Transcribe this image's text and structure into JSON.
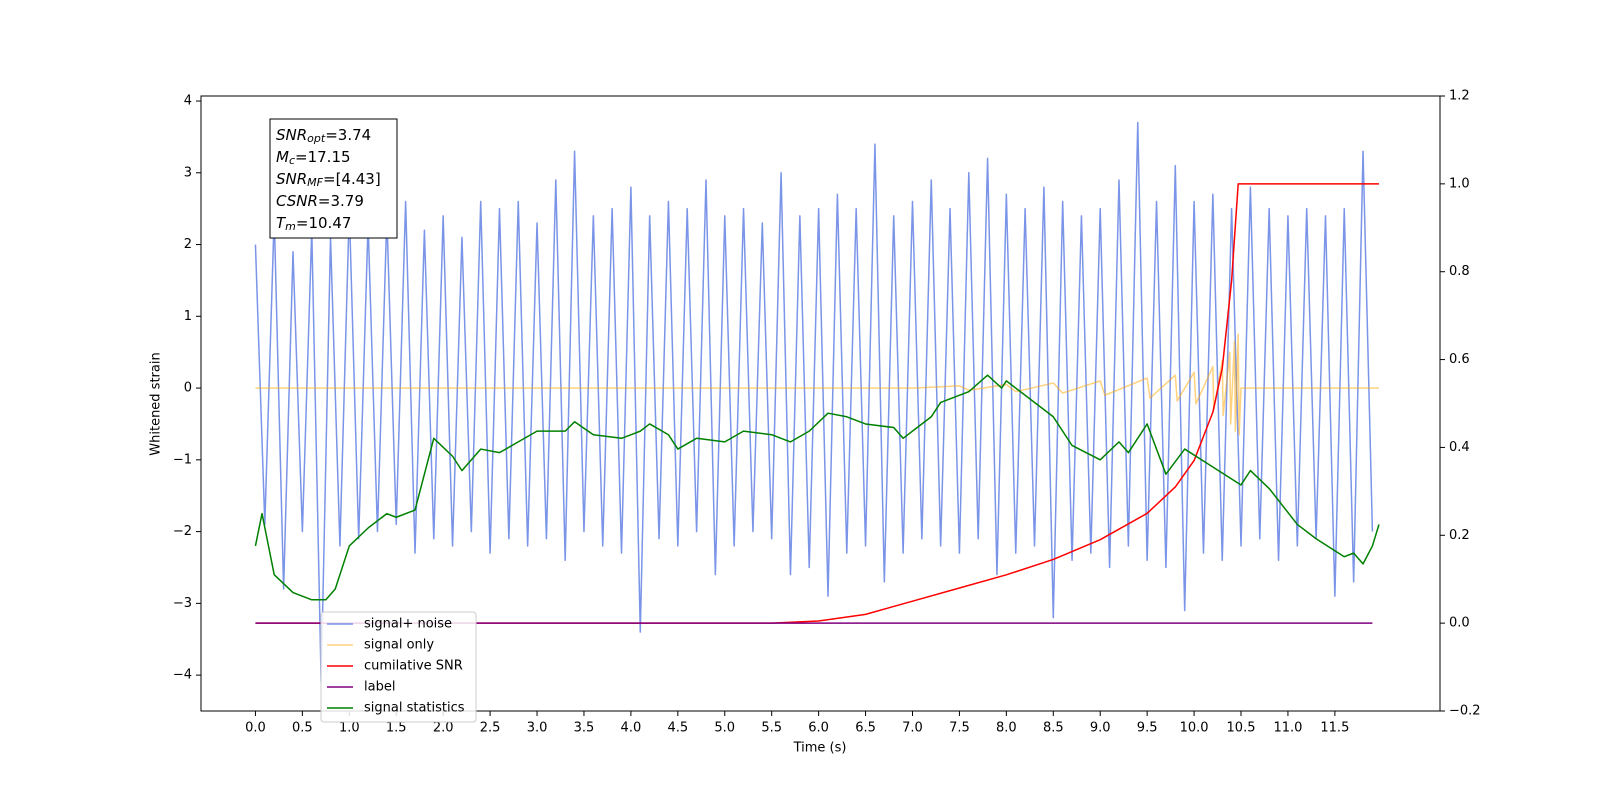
{
  "chart_data": {
    "type": "line",
    "xlabel": "Time (s)",
    "ylabel": "Whitened strain",
    "xlim": [
      -0.58,
      12.62
    ],
    "ylim": [
      -4.5,
      4.07
    ],
    "y2lim": [
      -0.2,
      1.2
    ],
    "xticks": [
      {
        "value": 0,
        "label": "0.0"
      },
      {
        "value": 0.5,
        "label": "0.5"
      },
      {
        "value": 1,
        "label": "1.0"
      },
      {
        "value": 1.5,
        "label": "1.5"
      },
      {
        "value": 2,
        "label": "2.0"
      },
      {
        "value": 2.5,
        "label": "2.5"
      },
      {
        "value": 3,
        "label": "3.0"
      },
      {
        "value": 3.5,
        "label": "3.5"
      },
      {
        "value": 4,
        "label": "4.0"
      },
      {
        "value": 4.5,
        "label": "4.5"
      },
      {
        "value": 5,
        "label": "5.0"
      },
      {
        "value": 5.5,
        "label": "5.5"
      },
      {
        "value": 6,
        "label": "6.0"
      },
      {
        "value": 6.5,
        "label": "6.5"
      },
      {
        "value": 7,
        "label": "7.0"
      },
      {
        "value": 7.5,
        "label": "7.5"
      },
      {
        "value": 8,
        "label": "8.0"
      },
      {
        "value": 8.5,
        "label": "8.5"
      },
      {
        "value": 9,
        "label": "9.0"
      },
      {
        "value": 9.5,
        "label": "9.5"
      },
      {
        "value": 10,
        "label": "10.0"
      },
      {
        "value": 10.5,
        "label": "10.5"
      },
      {
        "value": 11,
        "label": "11.0"
      },
      {
        "value": 11.5,
        "label": "11.5"
      }
    ],
    "yticks": [
      {
        "value": -4,
        "label": "−4"
      },
      {
        "value": -3,
        "label": "−3"
      },
      {
        "value": -2,
        "label": "−2"
      },
      {
        "value": -1,
        "label": "−1"
      },
      0,
      1,
      2,
      3,
      4
    ],
    "y2ticks": [
      {
        "value": -0.2,
        "label": "−0.2"
      },
      {
        "value": 0,
        "label": "0.0"
      },
      {
        "value": 0.2,
        "label": "0.2"
      },
      {
        "value": 0.4,
        "label": "0.4"
      },
      {
        "value": 0.6,
        "label": "0.6"
      },
      {
        "value": 0.8,
        "label": "0.8"
      },
      {
        "value": 1,
        "label": "1.0"
      },
      {
        "value": 1.2,
        "label": "1.2"
      }
    ],
    "annotation": [
      {
        "main": "SNR",
        "sub": "opt",
        "rest": "=3.74"
      },
      {
        "main": "M",
        "sub": "c",
        "rest": "=17.15"
      },
      {
        "main": "SNR",
        "sub": "MF",
        "rest": "=[4.43]"
      },
      {
        "main": "CSNR",
        "sub": "",
        "rest": "=3.79"
      },
      {
        "main": "T",
        "sub": "m",
        "rest": "=10.47"
      }
    ],
    "series": [
      {
        "name": "signal+ noise",
        "color": "#6b88e6",
        "axis": "y",
        "x": [
          0,
          0.1,
          0.2,
          0.3,
          0.4,
          0.5,
          0.6,
          0.7,
          0.8,
          0.9,
          1,
          1.1,
          1.2,
          1.3,
          1.4,
          1.5,
          1.6,
          1.7,
          1.8,
          1.9,
          2,
          2.1,
          2.2,
          2.3,
          2.4,
          2.5,
          2.6,
          2.7,
          2.8,
          2.9,
          3,
          3.1,
          3.2,
          3.3,
          3.4,
          3.5,
          3.6,
          3.7,
          3.8,
          3.9,
          4,
          4.1,
          4.2,
          4.3,
          4.4,
          4.5,
          4.6,
          4.7,
          4.8,
          4.9,
          5,
          5.1,
          5.2,
          5.3,
          5.4,
          5.5,
          5.6,
          5.7,
          5.8,
          5.9,
          6,
          6.1,
          6.2,
          6.3,
          6.4,
          6.5,
          6.6,
          6.7,
          6.8,
          6.9,
          7,
          7.1,
          7.2,
          7.3,
          7.4,
          7.5,
          7.6,
          7.7,
          7.8,
          7.9,
          8,
          8.1,
          8.2,
          8.3,
          8.4,
          8.5,
          8.6,
          8.7,
          8.8,
          8.9,
          9,
          9.1,
          9.2,
          9.3,
          9.4,
          9.5,
          9.6,
          9.7,
          9.8,
          9.9,
          10,
          10.1,
          10.2,
          10.3,
          10.4,
          10.5,
          10.6,
          10.7,
          10.8,
          10.9,
          11,
          11.1,
          11.2,
          11.3,
          11.4,
          11.5,
          11.6,
          11.7,
          11.8,
          11.9
        ],
        "values": [
          2.0,
          -1.9,
          2.4,
          -2.8,
          1.9,
          -2.0,
          2.2,
          -4.1,
          2.1,
          -2.2,
          2.5,
          -2.1,
          2.3,
          -2.0,
          2.4,
          -1.9,
          2.6,
          -2.3,
          2.2,
          -2.1,
          2.4,
          -2.2,
          2.1,
          -2.0,
          2.6,
          -2.3,
          2.5,
          -2.1,
          2.6,
          -2.2,
          2.3,
          -2.1,
          2.9,
          -2.4,
          3.3,
          -2.0,
          2.4,
          -2.2,
          2.5,
          -2.3,
          2.8,
          -3.4,
          2.4,
          -2.1,
          2.6,
          -2.2,
          2.5,
          -2.0,
          2.9,
          -2.6,
          2.4,
          -2.2,
          2.5,
          -2.0,
          2.3,
          -2.1,
          3.0,
          -2.6,
          2.4,
          -2.5,
          2.5,
          -2.9,
          2.7,
          -2.3,
          2.5,
          -2.2,
          3.4,
          -2.7,
          2.4,
          -2.3,
          2.6,
          -2.1,
          2.9,
          -2.2,
          2.5,
          -2.3,
          3.0,
          -2.1,
          3.2,
          -2.6,
          2.7,
          -2.3,
          2.5,
          -2.2,
          2.8,
          -3.2,
          2.6,
          -2.4,
          2.4,
          -2.3,
          2.5,
          -2.5,
          2.9,
          -2.2,
          3.7,
          -2.4,
          2.6,
          -2.5,
          3.1,
          -3.1,
          2.6,
          -2.3,
          2.7,
          -2.4,
          2.5,
          -2.2,
          2.8,
          -2.1,
          2.5,
          -2.4,
          2.4,
          -2.2,
          2.5,
          -2.1,
          2.4,
          -2.9,
          2.5,
          -2.7,
          3.3,
          -2.0
        ]
      },
      {
        "name": "signal only",
        "color": "orange",
        "axis": "y",
        "x": [
          0,
          7.0,
          7.5,
          7.6,
          8.0,
          8.1,
          8.5,
          8.6,
          9.0,
          9.05,
          9.5,
          9.53,
          9.8,
          9.82,
          10.0,
          10.02,
          10.2,
          10.21,
          10.3,
          10.31,
          10.38,
          10.39,
          10.43,
          10.44,
          10.47,
          10.48,
          10.5,
          11.97
        ],
        "values": [
          0,
          0,
          0.03,
          -0.03,
          0.05,
          -0.05,
          0.07,
          -0.07,
          0.1,
          -0.1,
          0.14,
          -0.14,
          0.18,
          -0.18,
          0.22,
          -0.22,
          0.3,
          -0.3,
          0.38,
          -0.38,
          0.5,
          -0.5,
          0.65,
          -0.6,
          0.75,
          -0.65,
          0,
          0
        ]
      },
      {
        "name": "cumilative SNR",
        "color": "red",
        "axis": "y2",
        "x": [
          0,
          5.5,
          6.0,
          6.5,
          7.0,
          7.5,
          8.0,
          8.5,
          9.0,
          9.5,
          9.8,
          10.0,
          10.2,
          10.3,
          10.4,
          10.47,
          11.97
        ],
        "values": [
          0,
          0,
          0.005,
          0.02,
          0.05,
          0.08,
          0.11,
          0.145,
          0.19,
          0.25,
          0.31,
          0.37,
          0.48,
          0.58,
          0.78,
          1.0,
          1.0
        ]
      },
      {
        "name": "label",
        "color": "purple",
        "axis": "y2",
        "x": [
          0,
          11.9
        ],
        "values": [
          0,
          0
        ]
      },
      {
        "name": "signal statistics",
        "color": "green",
        "axis": "y",
        "x": [
          0,
          0.07,
          0.2,
          0.4,
          0.6,
          0.75,
          0.85,
          1.0,
          1.2,
          1.4,
          1.5,
          1.7,
          1.8,
          1.9,
          2.1,
          2.2,
          2.4,
          2.6,
          2.8,
          3.0,
          3.3,
          3.4,
          3.6,
          3.9,
          4.1,
          4.2,
          4.4,
          4.5,
          4.7,
          5.0,
          5.2,
          5.5,
          5.7,
          5.9,
          6.1,
          6.3,
          6.5,
          6.8,
          6.9,
          7.0,
          7.2,
          7.3,
          7.6,
          7.8,
          7.95,
          8.0,
          8.5,
          8.7,
          9.0,
          9.2,
          9.3,
          9.5,
          9.7,
          9.9,
          10.2,
          10.5,
          10.6,
          10.8,
          11.1,
          11.3,
          11.6,
          11.7,
          11.8,
          11.9,
          11.97
        ],
        "values": [
          -2.2,
          -1.75,
          -2.6,
          -2.85,
          -2.95,
          -2.95,
          -2.8,
          -2.2,
          -1.95,
          -1.75,
          -1.8,
          -1.7,
          -1.2,
          -0.7,
          -0.95,
          -1.15,
          -0.85,
          -0.9,
          -0.75,
          -0.6,
          -0.6,
          -0.47,
          -0.65,
          -0.7,
          -0.6,
          -0.5,
          -0.65,
          -0.85,
          -0.7,
          -0.75,
          -0.6,
          -0.65,
          -0.75,
          -0.6,
          -0.35,
          -0.4,
          -0.5,
          -0.55,
          -0.7,
          -0.6,
          -0.4,
          -0.2,
          -0.05,
          0.18,
          0,
          0.1,
          -0.4,
          -0.8,
          -1.0,
          -0.75,
          -0.9,
          -0.5,
          -1.2,
          -0.85,
          -1.1,
          -1.35,
          -1.15,
          -1.4,
          -1.9,
          -2.1,
          -2.35,
          -2.3,
          -2.45,
          -2.2,
          -1.9
        ]
      }
    ]
  }
}
